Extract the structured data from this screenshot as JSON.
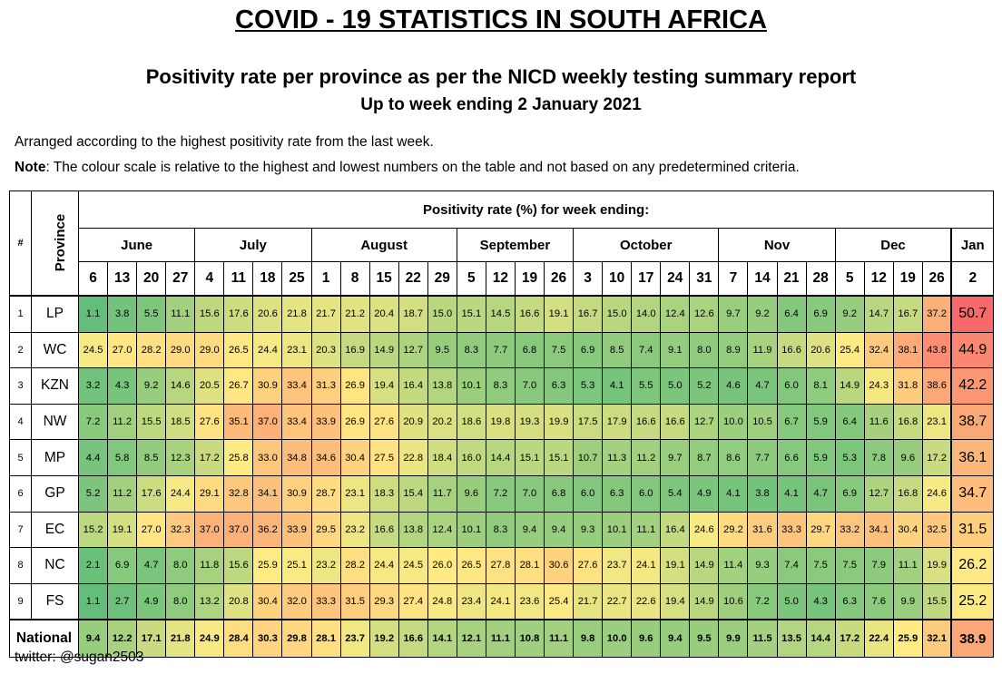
{
  "title": "COVID - 19 STATISTICS IN SOUTH AFRICA",
  "subtitle1": "Positivity rate per province as per the NICD weekly testing summary report",
  "subtitle2": "Up to week ending 2 January 2021",
  "note_line1": "Arranged according to the highest positivity rate from the last week.",
  "note_label": "Note",
  "note_text": ": The colour scale is relative to the highest and lowest numbers on the table and not based on any predetermined criteria.",
  "footer": "twitter: @sugan2503",
  "table": {
    "hash_header": "#",
    "province_header": "Province",
    "main_header": "Positivity rate (%) for week ending:",
    "national_label": "National",
    "months": [
      {
        "name": "June",
        "days": [
          "6",
          "13",
          "20",
          "27"
        ]
      },
      {
        "name": "July",
        "days": [
          "4",
          "11",
          "18",
          "25"
        ]
      },
      {
        "name": "August",
        "days": [
          "1",
          "8",
          "15",
          "22",
          "29"
        ]
      },
      {
        "name": "September",
        "days": [
          "5",
          "12",
          "19",
          "26"
        ]
      },
      {
        "name": "October",
        "days": [
          "3",
          "10",
          "17",
          "24",
          "31"
        ]
      },
      {
        "name": "Nov",
        "days": [
          "7",
          "14",
          "21",
          "28"
        ]
      },
      {
        "name": "Dec",
        "days": [
          "5",
          "12",
          "19",
          "26"
        ]
      },
      {
        "name": "Jan",
        "days": [
          "2"
        ]
      }
    ],
    "color_scale": {
      "low": "#63be7b",
      "mid": "#ffeb84",
      "high": "#f8696b"
    },
    "rows": [
      {
        "num": "1",
        "prov": "LP",
        "vals": [
          "1.1",
          "3.8",
          "5.5",
          "11.1",
          "15.6",
          "17.6",
          "20.6",
          "21.8",
          "21.7",
          "21.2",
          "20.4",
          "18.7",
          "15.0",
          "15.1",
          "14.5",
          "16.6",
          "19.1",
          "16.7",
          "15.0",
          "14.0",
          "12.4",
          "12.6",
          "9.7",
          "9.2",
          "6.4",
          "6.9",
          "9.2",
          "14.7",
          "16.7",
          "37.2",
          "50.7"
        ]
      },
      {
        "num": "2",
        "prov": "WC",
        "vals": [
          "24.5",
          "27.0",
          "28.2",
          "29.0",
          "29.0",
          "26.5",
          "24.4",
          "23.1",
          "20.3",
          "16.9",
          "14.9",
          "12.7",
          "9.5",
          "8.3",
          "7.7",
          "6.8",
          "7.5",
          "6.9",
          "8.5",
          "7.4",
          "9.1",
          "8.0",
          "8.9",
          "11.9",
          "16.6",
          "20.6",
          "25.4",
          "32.4",
          "38.1",
          "43.8",
          "44.9"
        ]
      },
      {
        "num": "3",
        "prov": "KZN",
        "vals": [
          "3.2",
          "4.3",
          "9.2",
          "14.6",
          "20.5",
          "26.7",
          "30.9",
          "33.4",
          "31.3",
          "26.9",
          "19.4",
          "16.4",
          "13.8",
          "10.1",
          "8.3",
          "7.0",
          "6.3",
          "5.3",
          "4.1",
          "5.5",
          "5.0",
          "5.2",
          "4.6",
          "4.7",
          "6.0",
          "8.1",
          "14.9",
          "24.3",
          "31.8",
          "38.6",
          "42.2"
        ]
      },
      {
        "num": "4",
        "prov": "NW",
        "vals": [
          "7.2",
          "11.2",
          "15.5",
          "18.5",
          "27.6",
          "35.1",
          "37.0",
          "33.4",
          "33.9",
          "26.9",
          "27.6",
          "20.9",
          "20.2",
          "18.6",
          "19.8",
          "19.3",
          "19.9",
          "17.5",
          "17.9",
          "16.6",
          "16.6",
          "12.7",
          "10.0",
          "10.5",
          "6.7",
          "5.9",
          "6.4",
          "11.6",
          "16.8",
          "23.1",
          "38.7"
        ]
      },
      {
        "num": "5",
        "prov": "MP",
        "vals": [
          "4.4",
          "5.8",
          "8.5",
          "12.3",
          "17.2",
          "25.8",
          "33.0",
          "34.8",
          "34.6",
          "30.4",
          "27.5",
          "22.8",
          "18.4",
          "16.0",
          "14.4",
          "15.1",
          "15.1",
          "10.7",
          "11.3",
          "11.2",
          "9.7",
          "8.7",
          "8.6",
          "7.7",
          "6.6",
          "5.9",
          "5.3",
          "7.8",
          "9.6",
          "17.2",
          "36.1"
        ]
      },
      {
        "num": "6",
        "prov": "GP",
        "vals": [
          "5.2",
          "11.2",
          "17.6",
          "24.4",
          "29.1",
          "32.8",
          "34.1",
          "30.9",
          "28.7",
          "23.1",
          "18.3",
          "15.4",
          "11.7",
          "9.6",
          "7.2",
          "7.0",
          "6.8",
          "6.0",
          "6.3",
          "6.0",
          "5.4",
          "4.9",
          "4.1",
          "3.8",
          "4.1",
          "4.7",
          "6.9",
          "12.7",
          "16.8",
          "24.6",
          "34.7"
        ]
      },
      {
        "num": "7",
        "prov": "EC",
        "vals": [
          "15.2",
          "19.1",
          "27.0",
          "32.3",
          "37.0",
          "37.0",
          "36.2",
          "33.9",
          "29.5",
          "23.2",
          "16.6",
          "13.8",
          "12.4",
          "10.1",
          "8.3",
          "9.4",
          "9.4",
          "9.3",
          "10.1",
          "11.1",
          "16.4",
          "24.6",
          "29.2",
          "31.6",
          "33.3",
          "29.7",
          "33.2",
          "34.1",
          "30.4",
          "32.5",
          "31.5"
        ]
      },
      {
        "num": "8",
        "prov": "NC",
        "vals": [
          "2.1",
          "6.9",
          "4.7",
          "8.0",
          "11.8",
          "15.6",
          "25.9",
          "25.1",
          "23.2",
          "28.2",
          "24.4",
          "24.5",
          "26.0",
          "26.5",
          "27.8",
          "28.1",
          "30.6",
          "27.6",
          "23.7",
          "24.1",
          "19.1",
          "14.9",
          "11.4",
          "9.3",
          "7.4",
          "7.5",
          "7.5",
          "7.9",
          "11.1",
          "19.9",
          "26.2"
        ]
      },
      {
        "num": "9",
        "prov": "FS",
        "vals": [
          "1.1",
          "2.7",
          "4.9",
          "8.0",
          "13.2",
          "20.8",
          "30.4",
          "32.0",
          "33.3",
          "31.5",
          "29.3",
          "27.4",
          "24.8",
          "23.4",
          "24.1",
          "23.6",
          "25.4",
          "21.7",
          "22.7",
          "22.6",
          "19.4",
          "14.9",
          "10.6",
          "7.2",
          "5.0",
          "4.3",
          "6.3",
          "7.6",
          "9.9",
          "15.5",
          "25.2"
        ]
      }
    ],
    "national": [
      "9.4",
      "12.2",
      "17.1",
      "21.8",
      "24.9",
      "28.4",
      "30.3",
      "29.8",
      "28.1",
      "23.7",
      "19.2",
      "16.6",
      "14.1",
      "12.1",
      "11.1",
      "10.8",
      "11.1",
      "9.8",
      "10.0",
      "9.6",
      "9.4",
      "9.5",
      "9.9",
      "11.5",
      "13.5",
      "14.4",
      "17.2",
      "22.4",
      "25.9",
      "32.1",
      "38.9"
    ]
  }
}
